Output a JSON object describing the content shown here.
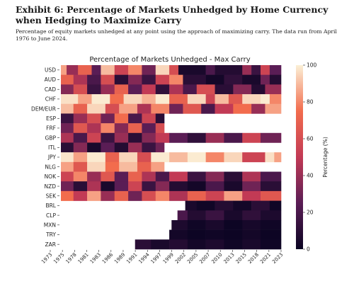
{
  "exhibit": {
    "title": "Exhibit 6: Percentage of Markets Unhedged by Home Currency when Hedging to Maximize Carry",
    "subtitle": "Percentage of equity markets unhedged at any point using the approach of maximizing carry. The data run from April 1976 to June 2024."
  },
  "colors": {
    "scale_low": "#0a0422",
    "scale_mid1": "#5a1d55",
    "scale_mid2": "#c23a55",
    "scale_mid3": "#f26c4d",
    "scale_high": "#fbf0d6",
    "blank": "#ffffff"
  },
  "chart_data": {
    "type": "heatmap",
    "title": "Percentage of Markets Unhedged - Max Carry",
    "colorbar_label": "Percentage (%)",
    "colorbar_ticks": [
      0,
      20,
      40,
      60,
      80,
      100
    ],
    "value_range": [
      0,
      100
    ],
    "x_range": [
      1976.25,
      2024.5
    ],
    "x_ticks": [
      "1973",
      "1975",
      "1978",
      "1981",
      "1983",
      "1986",
      "1989",
      "1991",
      "1994",
      "1997",
      "1999",
      "2002",
      "2005",
      "2007",
      "2010",
      "2013",
      "2015",
      "2018",
      "2021",
      "2023"
    ],
    "rows": [
      {
        "label": "USD",
        "start": 1976.25,
        "end": 2024.5,
        "segments": [
          [
            1976.25,
            1977.5,
            85
          ],
          [
            1977.5,
            1980,
            40
          ],
          [
            1980,
            1983,
            70
          ],
          [
            1983,
            1985,
            25
          ],
          [
            1985,
            1988,
            90
          ],
          [
            1988,
            1991,
            55
          ],
          [
            1991,
            1994,
            80
          ],
          [
            1994,
            1997,
            30
          ],
          [
            1997,
            2000,
            95
          ],
          [
            2000,
            2002,
            60
          ],
          [
            2002,
            2008,
            5
          ],
          [
            2008,
            2010,
            20
          ],
          [
            2010,
            2016,
            8
          ],
          [
            2016,
            2018,
            40
          ],
          [
            2018,
            2020,
            15
          ],
          [
            2020,
            2022,
            55
          ],
          [
            2022,
            2024.5,
            25
          ]
        ]
      },
      {
        "label": "AUD",
        "start": 1976.25,
        "end": 2024.5,
        "segments": [
          [
            1976.25,
            1979,
            70
          ],
          [
            1979,
            1982,
            45
          ],
          [
            1982,
            1985,
            20
          ],
          [
            1985,
            1988,
            60
          ],
          [
            1988,
            1991,
            10
          ],
          [
            1991,
            1994,
            35
          ],
          [
            1994,
            1997,
            15
          ],
          [
            1997,
            2000,
            55
          ],
          [
            2000,
            2003,
            80
          ],
          [
            2003,
            2008,
            10
          ],
          [
            2008,
            2012,
            3
          ],
          [
            2012,
            2016,
            12
          ],
          [
            2016,
            2020,
            5
          ],
          [
            2020,
            2022,
            30
          ],
          [
            2022,
            2024.5,
            8
          ]
        ]
      },
      {
        "label": "CAD",
        "start": 1976.25,
        "end": 2024.5,
        "segments": [
          [
            1976.25,
            1979,
            35
          ],
          [
            1979,
            1982,
            60
          ],
          [
            1982,
            1985,
            15
          ],
          [
            1985,
            1988,
            40
          ],
          [
            1988,
            1991,
            70
          ],
          [
            1991,
            1994,
            25
          ],
          [
            1994,
            1997,
            50
          ],
          [
            1997,
            2000,
            12
          ],
          [
            2000,
            2003,
            45
          ],
          [
            2003,
            2006,
            20
          ],
          [
            2006,
            2010,
            60
          ],
          [
            2010,
            2014,
            10
          ],
          [
            2014,
            2018,
            35
          ],
          [
            2018,
            2021,
            8
          ],
          [
            2021,
            2024.5,
            40
          ]
        ]
      },
      {
        "label": "CHF",
        "start": 1976.25,
        "end": 2024.5,
        "segments": [
          [
            1976.25,
            1980,
            97
          ],
          [
            1980,
            1983,
            85
          ],
          [
            1983,
            1987,
            99
          ],
          [
            1987,
            1990,
            75
          ],
          [
            1990,
            1994,
            95
          ],
          [
            1994,
            1997,
            88
          ],
          [
            1997,
            2000,
            99
          ],
          [
            2000,
            2004,
            70
          ],
          [
            2004,
            2008,
            95
          ],
          [
            2008,
            2010,
            55
          ],
          [
            2010,
            2013,
            90
          ],
          [
            2013,
            2016,
            65
          ],
          [
            2016,
            2020,
            95
          ],
          [
            2020,
            2022,
            99
          ],
          [
            2022,
            2024.5,
            80
          ]
        ]
      },
      {
        "label": "DEM/EUR",
        "start": 1976.25,
        "end": 2024.5,
        "segments": [
          [
            1976.25,
            1979,
            90
          ],
          [
            1979,
            1982,
            70
          ],
          [
            1982,
            1986,
            95
          ],
          [
            1986,
            1989,
            60
          ],
          [
            1989,
            1993,
            85
          ],
          [
            1993,
            1996,
            45
          ],
          [
            1996,
            2000,
            80
          ],
          [
            2000,
            2003,
            30
          ],
          [
            2003,
            2007,
            65
          ],
          [
            2007,
            2010,
            20
          ],
          [
            2010,
            2014,
            50
          ],
          [
            2014,
            2018,
            75
          ],
          [
            2018,
            2021,
            40
          ],
          [
            2021,
            2024.5,
            85
          ]
        ]
      },
      {
        "label": "ESP",
        "start": 1976.25,
        "end": 1998.9,
        "segments": [
          [
            1976.25,
            1979,
            15
          ],
          [
            1979,
            1982,
            40
          ],
          [
            1982,
            1985,
            60
          ],
          [
            1985,
            1988,
            30
          ],
          [
            1988,
            1991,
            75
          ],
          [
            1991,
            1994,
            20
          ],
          [
            1994,
            1997,
            55
          ],
          [
            1997,
            1998.9,
            10
          ]
        ]
      },
      {
        "label": "FRF",
        "start": 1976.25,
        "end": 1998.9,
        "segments": [
          [
            1976.25,
            1979,
            30
          ],
          [
            1979,
            1982,
            65
          ],
          [
            1982,
            1985,
            45
          ],
          [
            1985,
            1988,
            80
          ],
          [
            1988,
            1991,
            35
          ],
          [
            1991,
            1994,
            70
          ],
          [
            1994,
            1997,
            25
          ],
          [
            1997,
            1998.9,
            60
          ]
        ]
      },
      {
        "label": "GBP",
        "start": 1976.25,
        "end": 2024.5,
        "segments": [
          [
            1976.25,
            1979,
            45
          ],
          [
            1979,
            1982,
            20
          ],
          [
            1982,
            1985,
            55
          ],
          [
            1985,
            1988,
            15
          ],
          [
            1988,
            1991,
            40
          ],
          [
            1991,
            1994,
            10
          ],
          [
            1994,
            1997,
            35
          ],
          [
            1997,
            2000,
            50
          ],
          [
            2000,
            2004,
            25
          ],
          [
            2004,
            2008,
            12
          ],
          [
            2008,
            2012,
            40
          ],
          [
            2012,
            2016,
            20
          ],
          [
            2016,
            2020,
            55
          ],
          [
            2020,
            2024.5,
            30
          ]
        ]
      },
      {
        "label": "ITL",
        "start": 1976.25,
        "end": 1998.9,
        "segments": [
          [
            1976.25,
            1979,
            10
          ],
          [
            1979,
            1982,
            35
          ],
          [
            1982,
            1985,
            5
          ],
          [
            1985,
            1988,
            25
          ],
          [
            1988,
            1991,
            8
          ],
          [
            1991,
            1994,
            40
          ],
          [
            1994,
            1997,
            15
          ],
          [
            1997,
            1998.9,
            30
          ]
        ]
      },
      {
        "label": "JPY",
        "start": 1976.25,
        "end": 2024.5,
        "segments": [
          [
            1976.25,
            1979,
            98
          ],
          [
            1979,
            1982,
            85
          ],
          [
            1982,
            1986,
            99
          ],
          [
            1986,
            1989,
            70
          ],
          [
            1989,
            1993,
            95
          ],
          [
            1993,
            1996,
            60
          ],
          [
            1996,
            2000,
            99
          ],
          [
            2000,
            2004,
            90
          ],
          [
            2004,
            2008,
            99
          ],
          [
            2008,
            2012,
            80
          ],
          [
            2012,
            2016,
            95
          ],
          [
            2016,
            2021,
            55
          ],
          [
            2021,
            2023,
            97
          ],
          [
            2023,
            2024.5,
            85
          ]
        ]
      },
      {
        "label": "NLG",
        "start": 1976.25,
        "end": 1998.9,
        "segments": [
          [
            1976.25,
            1979,
            85
          ],
          [
            1979,
            1982,
            65
          ],
          [
            1982,
            1986,
            95
          ],
          [
            1986,
            1989,
            75
          ],
          [
            1989,
            1993,
            90
          ],
          [
            1993,
            1996,
            70
          ],
          [
            1996,
            1998.9,
            85
          ]
        ]
      },
      {
        "label": "NOK",
        "start": 1976.25,
        "end": 2024.5,
        "segments": [
          [
            1976.25,
            1979,
            55
          ],
          [
            1979,
            1982,
            80
          ],
          [
            1982,
            1985,
            40
          ],
          [
            1985,
            1988,
            65
          ],
          [
            1988,
            1991,
            25
          ],
          [
            1991,
            1994,
            70
          ],
          [
            1994,
            1997,
            45
          ],
          [
            1997,
            2000,
            20
          ],
          [
            2000,
            2004,
            50
          ],
          [
            2004,
            2008,
            15
          ],
          [
            2008,
            2012,
            35
          ],
          [
            2012,
            2016,
            10
          ],
          [
            2016,
            2020,
            45
          ],
          [
            2020,
            2024.5,
            20
          ]
        ]
      },
      {
        "label": "NZD",
        "start": 1976.25,
        "end": 2024.5,
        "segments": [
          [
            1976.25,
            1979,
            30
          ],
          [
            1979,
            1982,
            10
          ],
          [
            1982,
            1985,
            45
          ],
          [
            1985,
            1988,
            5
          ],
          [
            1988,
            1991,
            25
          ],
          [
            1991,
            1994,
            55
          ],
          [
            1994,
            1997,
            15
          ],
          [
            1997,
            2000,
            35
          ],
          [
            2000,
            2004,
            8
          ],
          [
            2004,
            2008,
            3
          ],
          [
            2008,
            2012,
            20
          ],
          [
            2012,
            2016,
            5
          ],
          [
            2016,
            2020,
            30
          ],
          [
            2020,
            2024.5,
            10
          ]
        ]
      },
      {
        "label": "SEK",
        "start": 1976.25,
        "end": 2024.5,
        "segments": [
          [
            1976.25,
            1979,
            75
          ],
          [
            1979,
            1982,
            50
          ],
          [
            1982,
            1985,
            85
          ],
          [
            1985,
            1988,
            40
          ],
          [
            1988,
            1991,
            70
          ],
          [
            1991,
            1994,
            30
          ],
          [
            1994,
            1997,
            60
          ],
          [
            1997,
            2000,
            80
          ],
          [
            2000,
            2004,
            45
          ],
          [
            2004,
            2008,
            70
          ],
          [
            2008,
            2012,
            55
          ],
          [
            2012,
            2016,
            85
          ],
          [
            2016,
            2020,
            50
          ],
          [
            2020,
            2024.5,
            65
          ]
        ]
      },
      {
        "label": "BRL",
        "start": 2003.5,
        "end": 2024.5,
        "segments": [
          [
            2003.5,
            2006,
            5
          ],
          [
            2006,
            2010,
            2
          ],
          [
            2010,
            2014,
            8
          ],
          [
            2014,
            2018,
            3
          ],
          [
            2018,
            2022,
            10
          ],
          [
            2022,
            2024.5,
            2
          ]
        ]
      },
      {
        "label": "CLP",
        "start": 2001.8,
        "end": 2024.5,
        "segments": [
          [
            2001.8,
            2004,
            20
          ],
          [
            2004,
            2008,
            8
          ],
          [
            2008,
            2012,
            15
          ],
          [
            2012,
            2016,
            5
          ],
          [
            2016,
            2020,
            12
          ],
          [
            2020,
            2024.5,
            6
          ]
        ]
      },
      {
        "label": "MXN",
        "start": 2000.5,
        "end": 2024.5,
        "segments": [
          [
            2000.5,
            2004,
            6
          ],
          [
            2004,
            2008,
            2
          ],
          [
            2008,
            2012,
            5
          ],
          [
            2012,
            2016,
            1
          ],
          [
            2016,
            2020,
            4
          ],
          [
            2020,
            2024.5,
            2
          ]
        ]
      },
      {
        "label": "TRY",
        "start": 2000.0,
        "end": 2024.5,
        "segments": [
          [
            2000.0,
            2004,
            3
          ],
          [
            2004,
            2008,
            1
          ],
          [
            2008,
            2012,
            2
          ],
          [
            2012,
            2016,
            1
          ],
          [
            2016,
            2020,
            3
          ],
          [
            2020,
            2024.5,
            1
          ]
        ]
      },
      {
        "label": "ZAR",
        "start": 1992.5,
        "end": 2024.5,
        "segments": [
          [
            1992.5,
            1996,
            10
          ],
          [
            1996,
            2000,
            5
          ],
          [
            2000,
            2004,
            8
          ],
          [
            2004,
            2008,
            3
          ],
          [
            2008,
            2012,
            6
          ],
          [
            2012,
            2016,
            2
          ],
          [
            2016,
            2020,
            5
          ],
          [
            2020,
            2024.5,
            2
          ]
        ]
      }
    ]
  }
}
